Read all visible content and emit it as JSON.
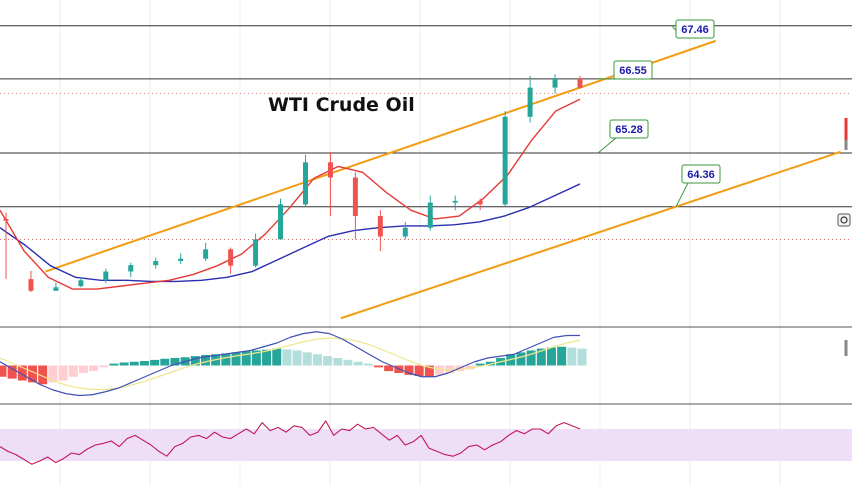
{
  "chart_data": {
    "type": "candlestick",
    "title": "WTI Crude Oil",
    "colors": {
      "bullish": "#26a69a",
      "bearish": "#ef5350",
      "ma_fast": "#e53935",
      "ma_slow": "#2a2fb0",
      "channel": "#f39c12",
      "label_border": "#3a9a3a",
      "label_text": "#1a1aa8",
      "macd_line": "#3f51b5",
      "signal_line": "#f0e68c",
      "rsi_line": "#c2185b",
      "rsi_band": "#efdef7"
    },
    "price_panel": {
      "ylim": [
        62.3,
        67.9
      ],
      "levels": [
        {
          "value": 67.46,
          "label": "67.46",
          "style": "solid"
        },
        {
          "value": 66.55,
          "label": "66.55",
          "style": "solid"
        },
        {
          "value": 65.28,
          "label": "65.28",
          "style": "solid"
        },
        {
          "value": 64.36,
          "label": "64.36",
          "style": "solid"
        },
        {
          "value": 66.3,
          "label": "",
          "style": "dotted"
        },
        {
          "value": 63.8,
          "label": "",
          "style": "dotted"
        }
      ],
      "channel": [
        {
          "name": "upper",
          "x0": 8,
          "y0": 63.25,
          "x1": 126,
          "y1": 67.2
        },
        {
          "name": "lower",
          "x0": 60,
          "y0": 62.45,
          "x1": 148,
          "y1": 65.3
        }
      ],
      "candles": [
        [
          64.15,
          64.12,
          63.12,
          64.26,
          63.05
        ],
        [
          63.12,
          62.92,
          62.9,
          63.26,
          62.7
        ],
        [
          62.92,
          62.98,
          62.92,
          63.06,
          62.85
        ],
        [
          63.0,
          63.1,
          62.98,
          63.15,
          62.95
        ],
        [
          63.1,
          63.25,
          63.05,
          63.3,
          62.98
        ],
        [
          63.25,
          63.36,
          63.15,
          63.4,
          63.05
        ],
        [
          63.36,
          63.43,
          63.3,
          63.49,
          63.2
        ],
        [
          63.43,
          63.47,
          63.38,
          63.56,
          63.3
        ],
        [
          63.47,
          63.63,
          63.43,
          63.74,
          63.38
        ],
        [
          63.63,
          63.35,
          63.21,
          63.66,
          63.05
        ],
        [
          63.35,
          63.8,
          63.32,
          63.9,
          63.28
        ],
        [
          63.8,
          64.4,
          63.8,
          64.5,
          63.7
        ],
        [
          64.4,
          65.12,
          64.36,
          65.25,
          64.3
        ],
        [
          65.12,
          64.86,
          64.2,
          65.3,
          64.1
        ],
        [
          64.86,
          64.2,
          63.8,
          64.95,
          63.7
        ],
        [
          64.2,
          63.85,
          63.6,
          64.3,
          63.5
        ],
        [
          63.85,
          64.0,
          63.8,
          64.1,
          63.6
        ],
        [
          64.0,
          64.43,
          63.95,
          64.55,
          63.9
        ],
        [
          64.43,
          64.46,
          64.3,
          64.55,
          64.2
        ],
        [
          64.46,
          64.4,
          64.3,
          64.5,
          64.25
        ],
        [
          64.4,
          65.9,
          64.36,
          66.0,
          64.3
        ],
        [
          65.9,
          66.4,
          65.8,
          66.6,
          65.7
        ],
        [
          66.4,
          66.55,
          66.3,
          66.63,
          66.2
        ],
        [
          66.55,
          66.39,
          66.39,
          66.6,
          66.3
        ]
      ],
      "candle_note": "candles given as [open, close, low(after spread), high, low] — see rendering",
      "ma_fast": [
        64.3,
        63.6,
        63.15,
        62.95,
        62.95,
        63.0,
        63.05,
        63.1,
        63.2,
        63.35,
        63.55,
        63.9,
        64.35,
        64.85,
        65.05,
        64.95,
        64.6,
        64.3,
        64.15,
        64.2,
        64.5,
        64.9,
        65.5,
        66.0,
        66.2
      ],
      "ma_slow": [
        64.0,
        63.7,
        63.35,
        63.15,
        63.1,
        63.1,
        63.08,
        63.08,
        63.1,
        63.15,
        63.25,
        63.45,
        63.65,
        63.85,
        63.95,
        64.0,
        64.03,
        64.03,
        64.05,
        64.1,
        64.2,
        64.35,
        64.55,
        64.75
      ]
    },
    "macd_panel": {
      "ylim": [
        -1,
        1
      ],
      "histogram": [
        -0.3,
        -0.35,
        -0.4,
        -0.45,
        -0.5,
        -0.45,
        -0.4,
        -0.3,
        -0.2,
        -0.15,
        -0.05,
        0.05,
        0.08,
        0.1,
        0.12,
        0.15,
        0.18,
        0.2,
        0.22,
        0.25,
        0.28,
        0.3,
        0.32,
        0.35,
        0.38,
        0.4,
        0.42,
        0.45,
        0.43,
        0.4,
        0.35,
        0.3,
        0.25,
        0.2,
        0.15,
        0.1,
        0.05,
        -0.05,
        -0.15,
        -0.2,
        -0.25,
        -0.28,
        -0.3,
        -0.25,
        -0.2,
        -0.15,
        -0.1,
        0.05,
        0.1,
        0.2,
        0.3,
        0.35,
        0.4,
        0.45,
        0.48,
        0.5,
        0.48,
        0.45
      ],
      "macd_line": [
        0.1,
        -0.1,
        -0.3,
        -0.5,
        -0.65,
        -0.75,
        -0.8,
        -0.78,
        -0.7,
        -0.6,
        -0.45,
        -0.3,
        -0.15,
        0.0,
        0.1,
        0.2,
        0.25,
        0.3,
        0.35,
        0.4,
        0.5,
        0.6,
        0.75,
        0.85,
        0.9,
        0.85,
        0.7,
        0.5,
        0.3,
        0.1,
        -0.05,
        -0.2,
        -0.3,
        -0.3,
        -0.2,
        -0.05,
        0.1,
        0.2,
        0.25,
        0.3,
        0.45,
        0.6,
        0.75,
        0.8,
        0.8
      ],
      "signal_line": [
        0.2,
        0.05,
        -0.1,
        -0.25,
        -0.4,
        -0.52,
        -0.6,
        -0.64,
        -0.64,
        -0.6,
        -0.52,
        -0.42,
        -0.3,
        -0.18,
        -0.06,
        0.05,
        0.13,
        0.2,
        0.26,
        0.31,
        0.37,
        0.45,
        0.54,
        0.63,
        0.7,
        0.73,
        0.72,
        0.66,
        0.56,
        0.42,
        0.28,
        0.13,
        0.0,
        -0.08,
        -0.12,
        -0.1,
        -0.05,
        0.02,
        0.1,
        0.18,
        0.27,
        0.38,
        0.5,
        0.6,
        0.67
      ]
    },
    "rsi_panel": {
      "ylim": [
        0,
        100
      ],
      "band": [
        30,
        70
      ],
      "values": [
        48,
        42,
        38,
        32,
        26,
        30,
        35,
        28,
        33,
        40,
        38,
        45,
        50,
        52,
        55,
        48,
        58,
        62,
        56,
        50,
        42,
        36,
        48,
        52,
        60,
        62,
        58,
        66,
        60,
        58,
        64,
        70,
        64,
        78,
        68,
        72,
        66,
        74,
        72,
        62,
        66,
        80,
        62,
        70,
        68,
        76,
        70,
        72,
        64,
        56,
        62,
        50,
        54,
        62,
        46,
        42,
        38,
        36,
        40,
        48,
        50,
        44,
        50,
        54,
        62,
        68,
        64,
        70,
        70,
        64,
        74,
        78,
        74,
        70
      ]
    }
  }
}
